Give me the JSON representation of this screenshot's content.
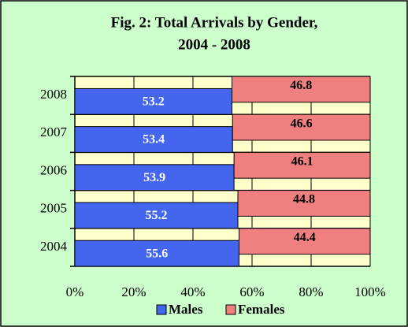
{
  "chart_data": {
    "type": "stacked_barh",
    "title": [
      "Fig. 2: Total Arrivals by Gender,",
      "2004 - 2008"
    ],
    "categories": [
      "2004",
      "2005",
      "2006",
      "2007",
      "2008"
    ],
    "series": [
      {
        "name": "Males",
        "color": "#4466ee",
        "values": [
          55.6,
          55.2,
          53.9,
          53.4,
          53.2
        ]
      },
      {
        "name": "Females",
        "color": "#f08080",
        "values": [
          44.4,
          44.8,
          46.1,
          46.6,
          46.8
        ]
      }
    ],
    "xlim": [
      0,
      100
    ],
    "xticks": [
      {
        "value": 0,
        "label": "0%"
      },
      {
        "value": 20,
        "label": "20%"
      },
      {
        "value": 40,
        "label": "40%"
      },
      {
        "value": 60,
        "label": "60%"
      },
      {
        "value": 80,
        "label": "80%"
      },
      {
        "value": 100,
        "label": "100%"
      }
    ],
    "grid": true
  }
}
